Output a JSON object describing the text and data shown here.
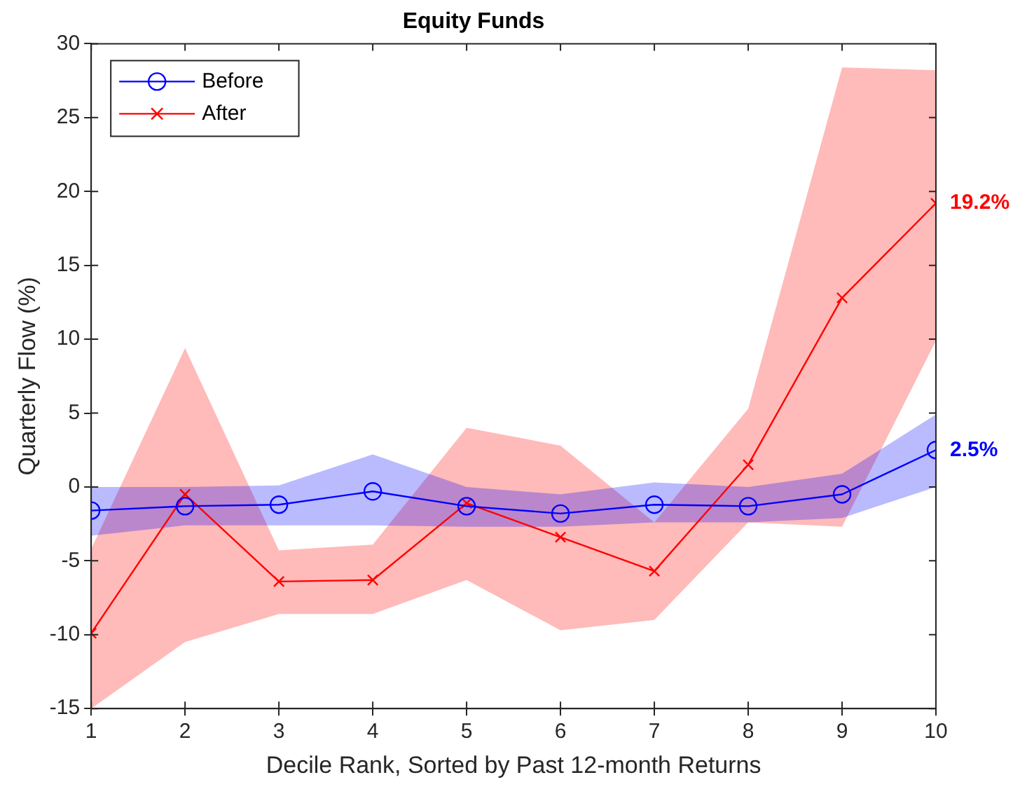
{
  "chart_data": {
    "type": "line",
    "title": "Equity Funds",
    "xlabel": "Decile Rank, Sorted by Past 12-month Returns",
    "ylabel": "Quarterly Flow (%)",
    "x": [
      1,
      2,
      3,
      4,
      5,
      6,
      7,
      8,
      9,
      10
    ],
    "xlim": [
      1,
      10
    ],
    "xticks": [
      1,
      2,
      3,
      4,
      5,
      6,
      7,
      8,
      9,
      10
    ],
    "ylim": [
      -15,
      30
    ],
    "yticks": [
      -15,
      -10,
      -5,
      0,
      5,
      10,
      15,
      20,
      25,
      30
    ],
    "grid": false,
    "legend": "top left",
    "line_style": "solid",
    "series": [
      {
        "name": "Before",
        "color": "#0000ff",
        "marker": "circle",
        "values": [
          -1.6,
          -1.3,
          -1.2,
          -0.3,
          -1.3,
          -1.8,
          -1.2,
          -1.3,
          -0.5,
          2.5
        ],
        "lower": [
          -3.3,
          -2.6,
          -2.6,
          -2.6,
          -2.7,
          -2.7,
          -2.4,
          -2.4,
          -2.1,
          0
        ],
        "upper": [
          0,
          0,
          0.1,
          2.2,
          0,
          -0.5,
          0.3,
          0,
          0.9,
          4.9
        ],
        "value_labels": [
          null,
          null,
          null,
          null,
          null,
          null,
          null,
          null,
          null,
          "2.5%"
        ]
      },
      {
        "name": "After",
        "color": "#ff0000",
        "marker": "cross",
        "values": [
          -9.9,
          -0.5,
          -6.4,
          -6.3,
          -1.1,
          -3.4,
          -5.7,
          1.5,
          12.8,
          19.2
        ],
        "lower": [
          -15,
          -10.5,
          -8.6,
          -8.6,
          -6.3,
          -9.7,
          -9,
          -2.4,
          -2.7,
          9.9
        ],
        "upper": [
          -4.2,
          9.4,
          -4.3,
          -3.9,
          4,
          2.8,
          -2.4,
          5.3,
          28.4,
          28.2
        ],
        "value_labels": [
          null,
          null,
          null,
          null,
          null,
          null,
          null,
          null,
          null,
          "19.2%"
        ]
      }
    ]
  }
}
